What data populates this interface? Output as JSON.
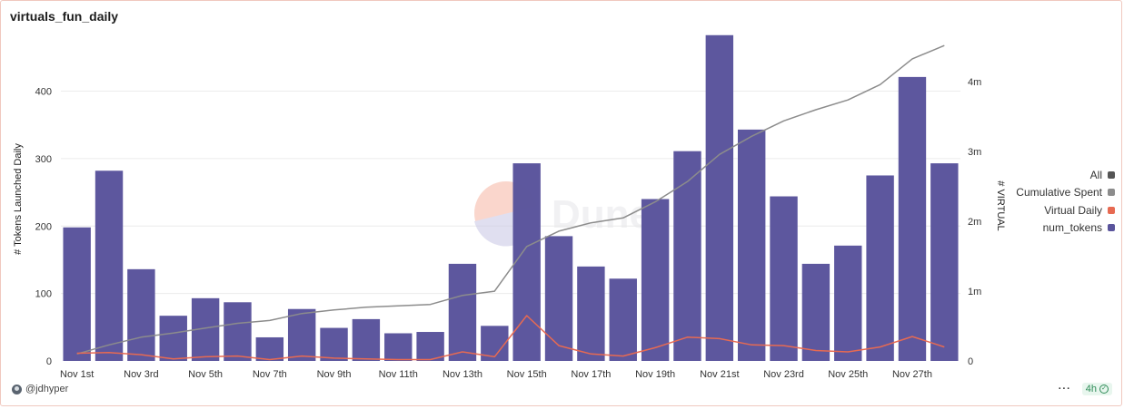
{
  "header": {
    "title": "virtuals_fun_daily"
  },
  "footer": {
    "username": "@jdhyper",
    "refresh": "4h",
    "more_label": "···"
  },
  "watermark": {
    "text": "Dune"
  },
  "legend": [
    {
      "label": "All",
      "color": "#555555"
    },
    {
      "label": "Cumulative Spent",
      "color": "#8c8c8c"
    },
    {
      "label": "Virtual Daily",
      "color": "#e76a52"
    },
    {
      "label": "num_tokens",
      "color": "#5a549c"
    }
  ],
  "chart_data": {
    "type": "bar",
    "title": "virtuals_fun_daily",
    "ylabel": "# Tokens Launched Daily",
    "y2label": "# VIRTUAL",
    "ylim": [
      0,
      480
    ],
    "y2lim": [
      0,
      4640000
    ],
    "yticks": [
      0,
      100,
      200,
      300,
      400
    ],
    "y2ticks": [
      {
        "value": 0,
        "label": "0"
      },
      {
        "value": 1000000,
        "label": "1m"
      },
      {
        "value": 2000000,
        "label": "2m"
      },
      {
        "value": 3000000,
        "label": "3m"
      },
      {
        "value": 4000000,
        "label": "4m"
      }
    ],
    "categories": [
      "Nov 1st",
      "Nov 2nd",
      "Nov 3rd",
      "Nov 4th",
      "Nov 5th",
      "Nov 6th",
      "Nov 7th",
      "Nov 8th",
      "Nov 9th",
      "Nov 10th",
      "Nov 11th",
      "Nov 12th",
      "Nov 13th",
      "Nov 14th",
      "Nov 15th",
      "Nov 16th",
      "Nov 17th",
      "Nov 18th",
      "Nov 19th",
      "Nov 20th",
      "Nov 21st",
      "Nov 22nd",
      "Nov 23rd",
      "Nov 24th",
      "Nov 25th",
      "Nov 26th",
      "Nov 27th",
      "Nov 28th"
    ],
    "xtick_labels": [
      "Nov 1st",
      "",
      "Nov 3rd",
      "",
      "Nov 5th",
      "",
      "Nov 7th",
      "",
      "Nov 9th",
      "",
      "Nov 11th",
      "",
      "Nov 13th",
      "",
      "Nov 15th",
      "",
      "Nov 17th",
      "",
      "Nov 19th",
      "",
      "Nov 21st",
      "",
      "Nov 23rd",
      "",
      "Nov 25th",
      "",
      "Nov 27th",
      ""
    ],
    "legend_position": "right",
    "grid": true,
    "series": [
      {
        "name": "num_tokens",
        "type": "bar",
        "axis": "left",
        "color": "#5a549c",
        "values": [
          198,
          282,
          136,
          67,
          93,
          87,
          35,
          77,
          49,
          62,
          41,
          43,
          144,
          52,
          293,
          185,
          140,
          122,
          240,
          311,
          483,
          343,
          244,
          144,
          171,
          275,
          421,
          293
        ]
      },
      {
        "name": "Cumulative Spent",
        "type": "line",
        "axis": "right",
        "color": "#8c8c8c",
        "values": [
          100000,
          230000,
          340000,
          400000,
          470000,
          540000,
          580000,
          680000,
          730000,
          770000,
          790000,
          810000,
          940000,
          1000000,
          1640000,
          1860000,
          1980000,
          2050000,
          2280000,
          2570000,
          2960000,
          3220000,
          3440000,
          3600000,
          3740000,
          3960000,
          4330000,
          4520000
        ]
      },
      {
        "name": "Virtual Daily",
        "type": "line",
        "axis": "right",
        "color": "#e76a52",
        "values": [
          110000,
          120000,
          90000,
          30000,
          60000,
          70000,
          20000,
          70000,
          40000,
          30000,
          20000,
          20000,
          130000,
          60000,
          650000,
          220000,
          100000,
          70000,
          190000,
          340000,
          320000,
          230000,
          220000,
          150000,
          130000,
          200000,
          350000,
          200000
        ]
      }
    ]
  }
}
